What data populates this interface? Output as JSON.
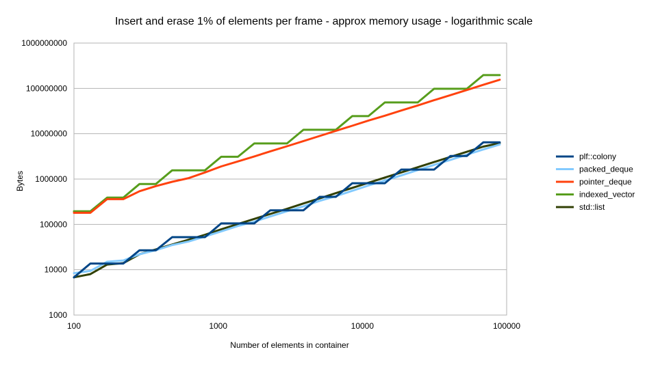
{
  "chart_data": {
    "type": "line",
    "title": "Insert and erase 1% of elements per frame - approx memory usage - logarithmic scale",
    "xlabel": "Number of elements in container",
    "ylabel": "Bytes",
    "x_scale": "log",
    "y_scale": "log",
    "xlim": [
      100,
      100000
    ],
    "ylim": [
      1000,
      1000000000
    ],
    "x_ticks": [
      100,
      1000,
      10000,
      100000
    ],
    "x_tick_labels": [
      "100",
      "1000",
      "10000",
      "100000"
    ],
    "y_ticks": [
      1000,
      10000,
      100000,
      1000000,
      10000000,
      100000000,
      1000000000
    ],
    "y_tick_labels": [
      "1000",
      "10000",
      "100000",
      "1000000",
      "10000000",
      "100000000",
      "1000000000"
    ],
    "grid": "horizontal",
    "legend_position": "right",
    "series": [
      {
        "name": "plf::colony",
        "color": "#004586",
        "x": [
          100,
          130,
          170,
          220,
          285,
          370,
          480,
          625,
          810,
          1050,
          1370,
          1780,
          2300,
          3000,
          3900,
          5050,
          6550,
          8500,
          11000,
          14300,
          18600,
          24200,
          31400,
          40800,
          53000,
          68900,
          89500
        ],
        "y": [
          6800,
          13700,
          13700,
          13700,
          26900,
          26900,
          52400,
          52400,
          52400,
          105000,
          105000,
          105000,
          205000,
          205000,
          205000,
          405000,
          405000,
          810000,
          810000,
          810000,
          1620000,
          1620000,
          1620000,
          3230000,
          3230000,
          6460000,
          6460000
        ]
      },
      {
        "name": "packed_deque",
        "color": "#83caff",
        "x": [
          100,
          130,
          170,
          220,
          285,
          370,
          480,
          625,
          810,
          1050,
          1370,
          1780,
          2300,
          3000,
          3900,
          5050,
          6550,
          8500,
          11000,
          14300,
          18600,
          24200,
          31400,
          40800,
          53000,
          68900,
          89500
        ],
        "y": [
          8400,
          9400,
          15000,
          16000,
          22000,
          27000,
          35000,
          42000,
          54000,
          70000,
          92000,
          115000,
          150000,
          195000,
          250000,
          330000,
          420000,
          550000,
          720000,
          930000,
          1200000,
          1580000,
          2050000,
          2650000,
          3450000,
          4500000,
          5800000
        ]
      },
      {
        "name": "pointer_deque",
        "color": "#ff420e",
        "x": [
          100,
          130,
          170,
          220,
          285,
          370,
          480,
          625,
          810,
          1050,
          1370,
          1780,
          2300,
          3000,
          3900,
          5050,
          6550,
          8500,
          11000,
          14300,
          18600,
          24200,
          31400,
          40800,
          53000,
          68900,
          89500
        ],
        "y": [
          180000,
          180000,
          360000,
          360000,
          540000,
          700000,
          870000,
          1050000,
          1400000,
          1900000,
          2450000,
          3150000,
          4100000,
          5300000,
          6900000,
          8900000,
          11600000,
          15000000,
          19500000,
          25000000,
          32500000,
          42000000,
          55000000,
          71000000,
          92000000,
          120000000,
          155000000
        ]
      },
      {
        "name": "indexed_vector",
        "color": "#579d1c",
        "x": [
          100,
          130,
          170,
          220,
          285,
          370,
          480,
          625,
          810,
          1050,
          1370,
          1780,
          2300,
          3000,
          3900,
          5050,
          6550,
          8500,
          11000,
          14300,
          18600,
          24200,
          31400,
          40800,
          53000,
          68900,
          89500
        ],
        "y": [
          195000,
          195000,
          390000,
          390000,
          780000,
          780000,
          1560000,
          1560000,
          1560000,
          3100000,
          3100000,
          6100000,
          6100000,
          6100000,
          12200000,
          12200000,
          12200000,
          24500000,
          24500000,
          49000000,
          49000000,
          49000000,
          98000000,
          98000000,
          98000000,
          196000000,
          196000000
        ]
      },
      {
        "name": "std::list",
        "color": "#314004",
        "x": [
          100,
          130,
          170,
          220,
          285,
          370,
          480,
          625,
          810,
          1050,
          1370,
          1780,
          2300,
          3000,
          3900,
          5050,
          6550,
          8500,
          11000,
          14300,
          18600,
          24200,
          31400,
          40800,
          53000,
          68900,
          89500
        ],
        "y": [
          6800,
          8000,
          13000,
          14000,
          22000,
          28000,
          36000,
          46000,
          59000,
          78000,
          102000,
          132000,
          170000,
          220000,
          290000,
          375000,
          490000,
          640000,
          830000,
          1080000,
          1400000,
          1820000,
          2370000,
          3080000,
          4000000,
          5200000,
          6200000
        ]
      }
    ]
  }
}
